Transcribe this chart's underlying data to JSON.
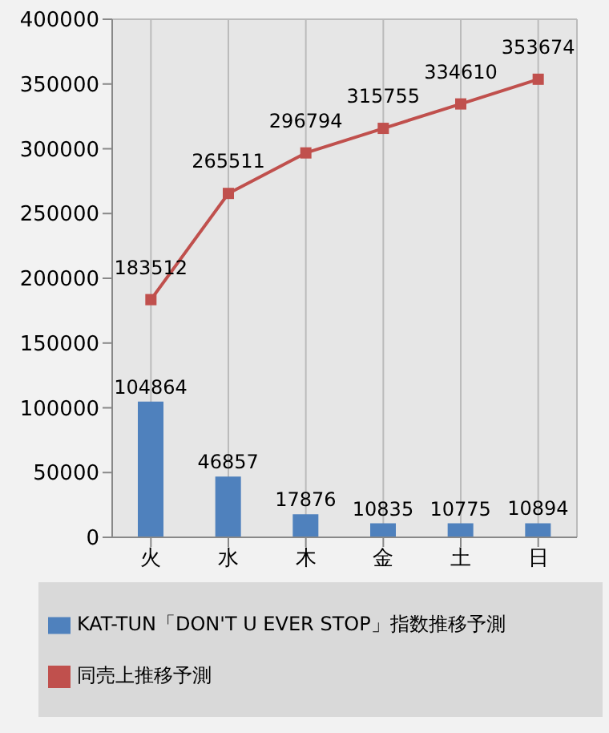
{
  "chart_data": {
    "type": "bar",
    "categories": [
      "火",
      "水",
      "木",
      "金",
      "土",
      "日"
    ],
    "series": [
      {
        "name": "KAT-TUN「DON'T U EVER STOP」指数推移予測",
        "color": "#4f81bd",
        "values": [
          104864,
          46857,
          17876,
          10835,
          10775,
          10894
        ]
      },
      {
        "name": "同売上推移予測",
        "type": "line",
        "color": "#c0504d",
        "values": [
          183512,
          265511,
          296794,
          315755,
          334610,
          353674
        ],
        "marker": "square"
      }
    ],
    "ylim": [
      0,
      400000
    ],
    "yticks": [
      0,
      50000,
      100000,
      150000,
      200000,
      250000,
      300000,
      350000,
      400000
    ],
    "grid": true,
    "legend": "bottom",
    "data_labels": true
  }
}
